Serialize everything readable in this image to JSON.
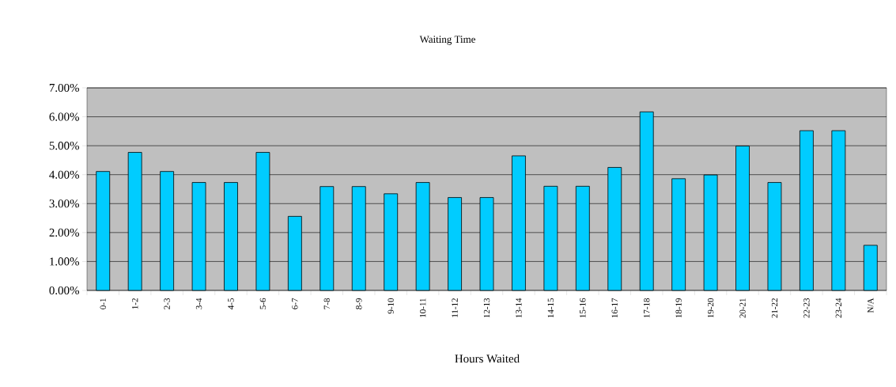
{
  "chart_data": {
    "type": "bar",
    "title": "Waiting Time",
    "xlabel": "Hours Waited",
    "categories": [
      "0-1",
      "1-2",
      "2-3",
      "3-4",
      "4-5",
      "5-6",
      "6-7",
      "7-8",
      "8-9",
      "9-10",
      "10-11",
      "11-12",
      "12-13",
      "13-14",
      "14-15",
      "15-16",
      "16-17",
      "17-18",
      "18-19",
      "19-20",
      "20-21",
      "21-22",
      "22-23",
      "23-24",
      "N/A"
    ],
    "values": [
      4.11,
      4.77,
      4.11,
      3.73,
      3.73,
      4.77,
      2.56,
      3.59,
      3.59,
      3.34,
      3.73,
      3.21,
      3.21,
      4.65,
      3.6,
      3.6,
      4.25,
      6.17,
      3.86,
      3.99,
      4.99,
      3.73,
      5.52,
      5.52,
      1.56
    ],
    "color": "#00ccff",
    "ylim": [
      0,
      7
    ],
    "yticks": [
      {
        "value": 0,
        "label": "0.00%"
      },
      {
        "value": 1,
        "label": "1.00%"
      },
      {
        "value": 2,
        "label": "2.00%"
      },
      {
        "value": 3,
        "label": "3.00%"
      },
      {
        "value": 4,
        "label": "4.00%"
      },
      {
        "value": 5,
        "label": "5.00%"
      },
      {
        "value": 6,
        "label": "6.00%"
      },
      {
        "value": 7,
        "label": "7.00%"
      }
    ],
    "grid": "y"
  }
}
